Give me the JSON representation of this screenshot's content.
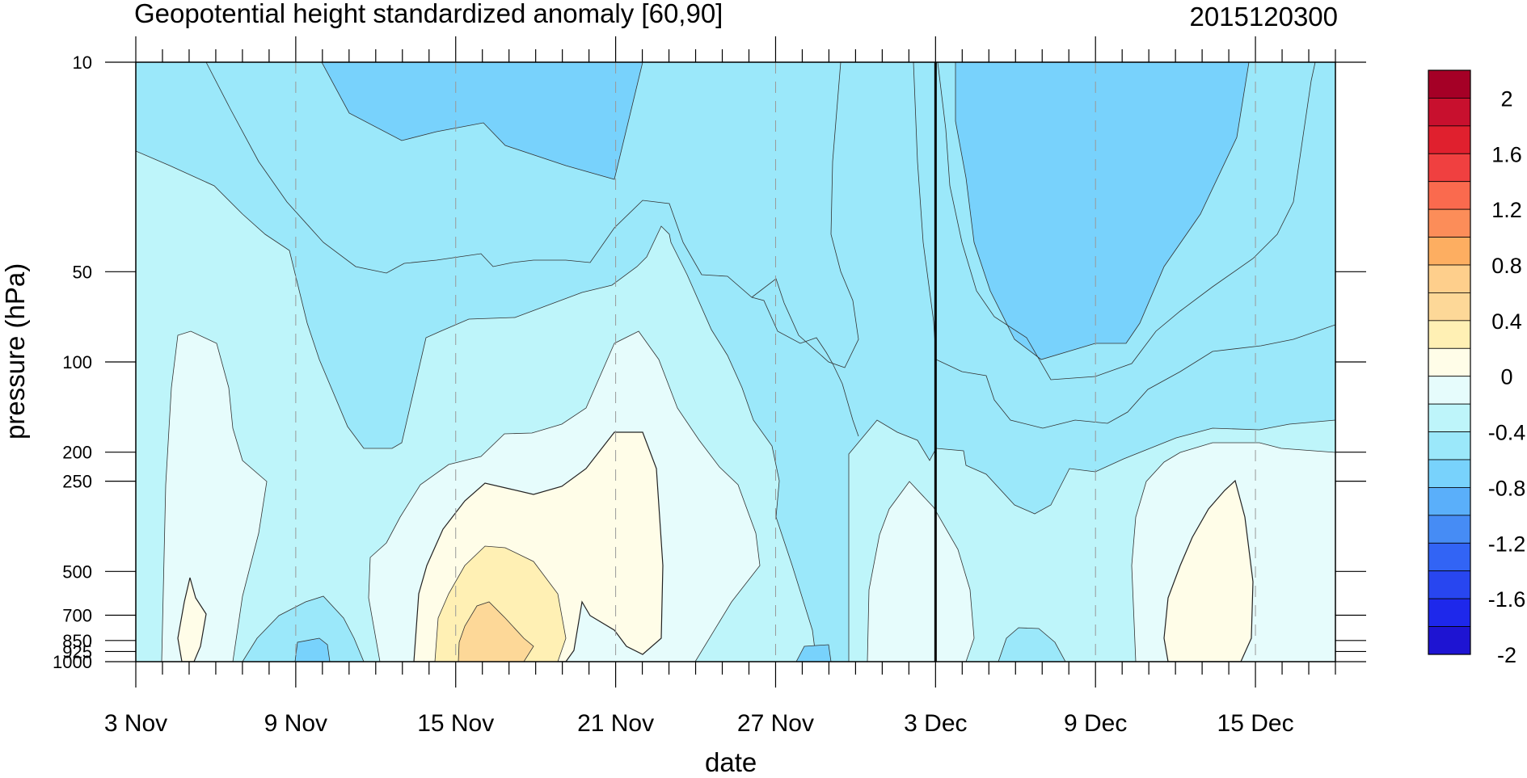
{
  "title": "Geopotential height standardized anomaly [60,90]",
  "run_stamp": "2015120300",
  "chart_data": {
    "type": "contour",
    "xlabel": "date",
    "ylabel": "pressure (hPa)",
    "x_ticks": [
      "3 Nov",
      "9 Nov",
      "15 Nov",
      "21 Nov",
      "27 Nov",
      "3 Dec",
      "9 Dec",
      "15 Dec"
    ],
    "x_tick_days": [
      0,
      6,
      12,
      18,
      24,
      30,
      36,
      42
    ],
    "x_range_days": [
      0,
      45
    ],
    "analysis_day": 30,
    "y_ticks": [
      10,
      50,
      100,
      200,
      250,
      500,
      700,
      850,
      925,
      1000
    ],
    "y_scale": "log-pressure",
    "colorbar": {
      "labels": [
        "2",
        "1.6",
        "1.2",
        "0.8",
        "0.4",
        "0",
        "-0.4",
        "-0.8",
        "-1.2",
        "-1.6",
        "-2"
      ],
      "colors": [
        "#a50026",
        "#c8102e",
        "#e0202e",
        "#f04040",
        "#fa6a4e",
        "#fc8d59",
        "#fdae61",
        "#fecf8c",
        "#fdd898",
        "#fff0b4",
        "#fffde8",
        "#e6fcfc",
        "#bef5fa",
        "#9be8fa",
        "#78d2fc",
        "#5aaffa",
        "#468cf5",
        "#3264f5",
        "#2846f0",
        "#1e28eb",
        "#1e14d2"
      ]
    },
    "levels": [
      {
        "value": -0.8,
        "color": "#78d2fc"
      },
      {
        "value": -0.6,
        "color": "#9be8fa"
      },
      {
        "value": -0.4,
        "color": "#bef5fa"
      },
      {
        "value": -0.2,
        "color": "#e6fcfc"
      },
      {
        "value": 0.0,
        "color": "#fffde8"
      },
      {
        "value": 0.2,
        "color": "#fff0b4"
      },
      {
        "value": 0.4,
        "color": "#fdd898"
      }
    ]
  }
}
